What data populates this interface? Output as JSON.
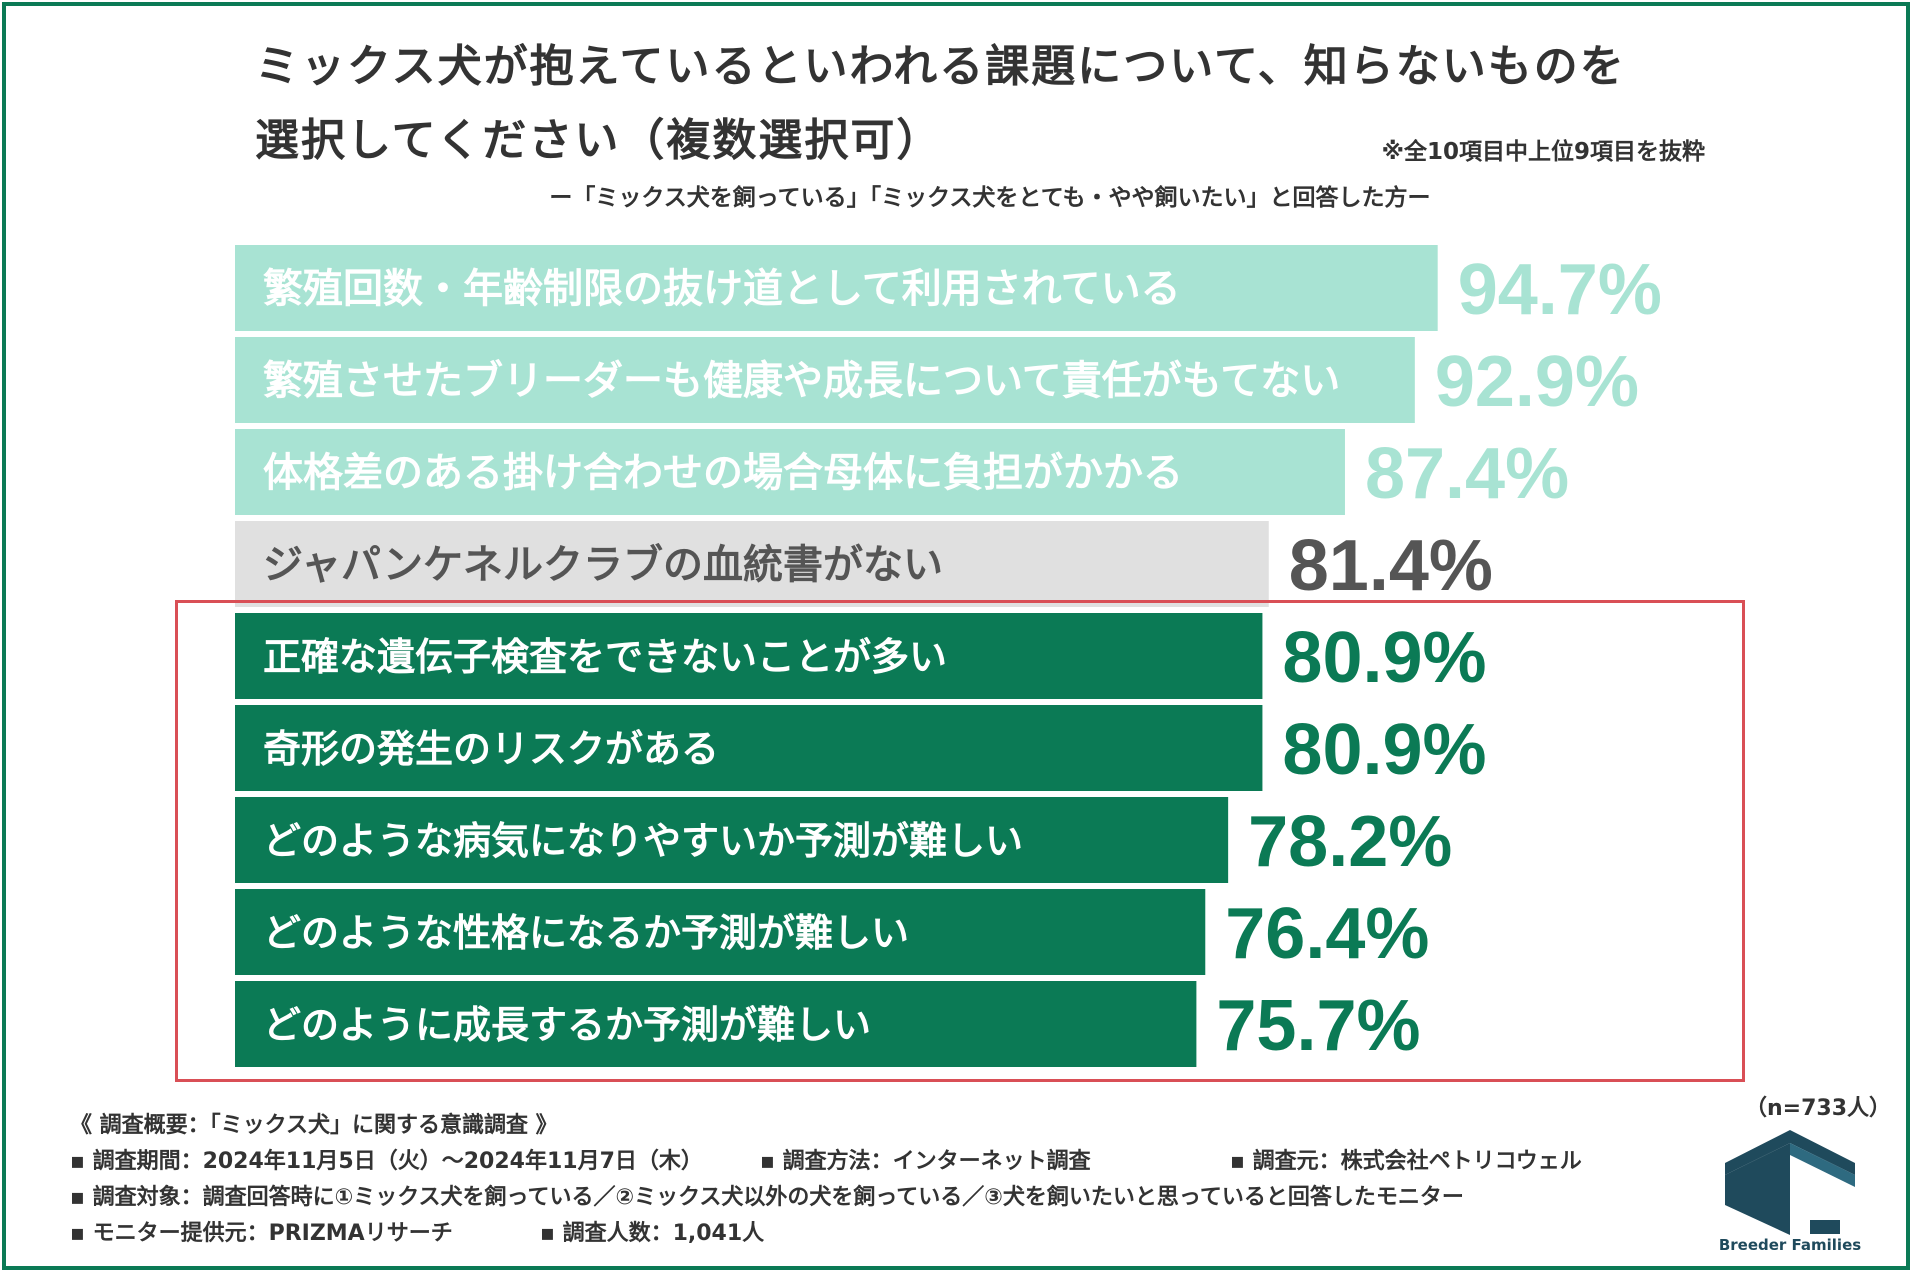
{
  "title_line1": "ミックス犬が抱えているといわれる課題について、知らないものを",
  "title_line2": "選択してください（複数選択可）",
  "note": "※全10項目中上位9項目を抜粋",
  "subtitle": "ー「ミックス犬を飼っている」「ミックス犬をとても・やや飼いたい」と回答した方ー",
  "sample_size": "（n=733人）",
  "chart_data": {
    "type": "bar",
    "orientation": "horizontal",
    "categories": [
      "繁殖回数・年齢制限の抜け道として利用されている",
      "繁殖させたブリーダーも健康や成長について責任がもてない",
      "体格差のある掛け合わせの場合母体に負担がかかる",
      "ジャパンケネルクラブの血統書がない",
      "正確な遺伝子検査をできないことが多い",
      "奇形の発生のリスクがある",
      "どのような病気になりやすいか予測が難しい",
      "どのような性格になるか予測が難しい",
      "どのように成長するか予測が難しい"
    ],
    "values": [
      94.7,
      92.9,
      87.4,
      81.4,
      80.9,
      80.9,
      78.2,
      76.4,
      75.7
    ],
    "value_labels": [
      "94.7%",
      "92.9%",
      "87.4%",
      "81.4%",
      "80.9%",
      "80.9%",
      "78.2%",
      "76.4%",
      "75.7%"
    ],
    "bar_colors": [
      "#a8e3d3",
      "#a8e3d3",
      "#a8e3d3",
      "#e0e0e0",
      "#0b7a55",
      "#0b7a55",
      "#0b7a55",
      "#0b7a55",
      "#0b7a55"
    ],
    "label_colors": [
      "#ffffff",
      "#ffffff",
      "#ffffff",
      "#555555",
      "#ffffff",
      "#ffffff",
      "#ffffff",
      "#ffffff",
      "#ffffff"
    ],
    "value_colors": [
      "#a8e3d3",
      "#a8e3d3",
      "#a8e3d3",
      "#555555",
      "#0b7a55",
      "#0b7a55",
      "#0b7a55",
      "#0b7a55",
      "#0b7a55"
    ],
    "highlighted_range": [
      4,
      8
    ],
    "highlight_color": "#d94f56"
  },
  "footer": {
    "heading": "《 調査概要：「ミックス犬」に関する意識調査 》",
    "period": "▪ 調査期間：2024年11月5日（火）〜2024年11月7日（木）",
    "method": "▪ 調査方法：インターネット調査",
    "organizer": "▪ 調査元：株式会社ペトリコウェル",
    "target": "▪ 調査対象：調査回答時に①ミックス犬を飼っている／②ミックス犬以外の犬を飼っている／③犬を飼いたいと思っていると回答したモニター",
    "provider": "▪ モニター提供元：PRIZMAリサーチ",
    "respondents": "▪ 調査人数：1,041人"
  },
  "logo_text": "Breeder Families",
  "colors": {
    "frame": "#0b7a55",
    "logo": "#1f4a5c"
  }
}
